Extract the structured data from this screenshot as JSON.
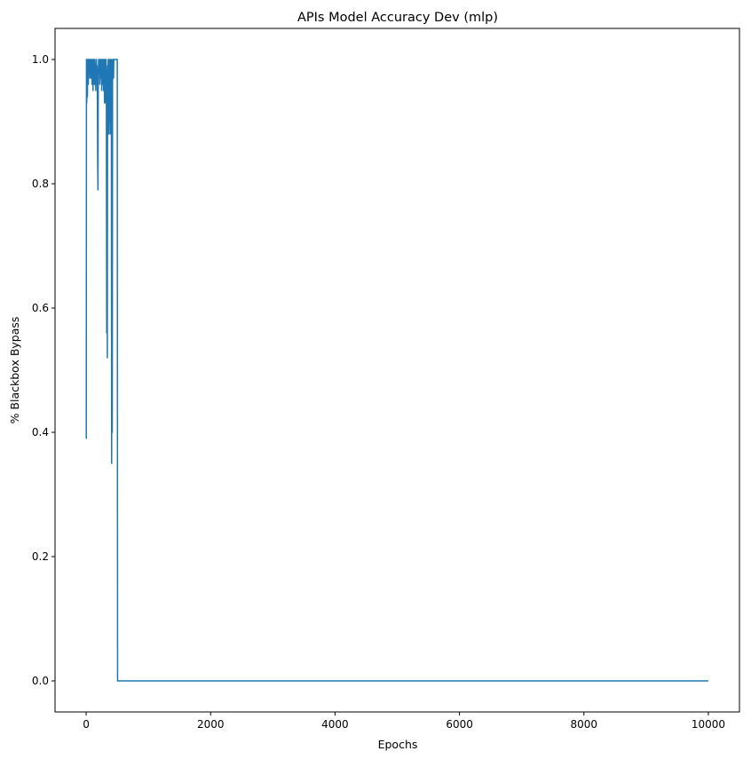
{
  "chart_data": {
    "type": "line",
    "title": "APIs Model Accuracy Dev (mlp)",
    "xlabel": "Epochs",
    "ylabel": "% Blackbox Bypass",
    "xlim": [
      -500,
      10500
    ],
    "ylim": [
      -0.05,
      1.05
    ],
    "xticks": [
      0,
      2000,
      4000,
      6000,
      8000,
      10000
    ],
    "xtick_labels": [
      "0",
      "2000",
      "4000",
      "6000",
      "8000",
      "10000"
    ],
    "yticks": [
      0.0,
      0.2,
      0.4,
      0.6,
      0.8,
      1.0
    ],
    "ytick_labels": [
      "0.0",
      "0.2",
      "0.4",
      "0.6",
      "0.8",
      "1.0"
    ],
    "grid": false,
    "color": "#1f77b4",
    "series": [
      {
        "x": [
          0,
          2,
          5,
          10,
          15,
          20,
          25,
          30,
          35,
          40,
          45,
          50,
          55,
          60,
          65,
          70,
          75,
          80,
          85,
          90,
          95,
          100,
          105,
          110,
          115,
          120,
          125,
          130,
          135,
          140,
          145,
          150,
          155,
          160,
          165,
          170,
          175,
          180,
          185,
          190,
          195,
          200,
          205,
          210,
          215,
          220,
          225,
          230,
          235,
          240,
          245,
          250,
          255,
          260,
          265,
          270,
          275,
          280,
          285,
          290,
          295,
          300,
          305,
          310,
          315,
          320,
          325,
          330,
          335,
          340,
          345,
          350,
          355,
          360,
          365,
          370,
          375,
          380,
          385,
          390,
          395,
          400,
          405,
          410,
          415,
          420,
          425,
          430,
          435,
          440,
          445,
          450,
          455,
          460,
          465,
          470,
          475,
          480,
          485,
          490,
          495,
          500,
          505,
          510,
          520,
          10000
        ],
        "y": [
          0.39,
          0.39,
          1.0,
          0.93,
          1.0,
          0.94,
          0.99,
          1.0,
          0.96,
          1.0,
          1.0,
          0.99,
          1.0,
          0.97,
          1.0,
          0.98,
          1.0,
          0.97,
          0.99,
          1.0,
          0.96,
          0.98,
          1.0,
          0.95,
          1.0,
          0.97,
          1.0,
          0.96,
          0.99,
          1.0,
          0.96,
          0.99,
          0.95,
          0.98,
          1.0,
          0.97,
          0.99,
          0.95,
          0.84,
          0.79,
          0.97,
          1.0,
          1.0,
          0.98,
          1.0,
          0.96,
          0.99,
          1.0,
          0.97,
          1.0,
          0.99,
          0.95,
          1.0,
          0.98,
          0.96,
          0.99,
          1.0,
          0.95,
          0.98,
          1.0,
          0.93,
          0.97,
          1.0,
          0.95,
          0.93,
          1.0,
          0.97,
          0.56,
          0.95,
          0.52,
          0.99,
          0.94,
          1.0,
          0.88,
          0.95,
          1.0,
          0.9,
          0.99,
          0.88,
          1.0,
          0.92,
          0.97,
          1.0,
          0.35,
          0.94,
          0.4,
          1.0,
          0.98,
          1.0,
          0.97,
          1.0,
          1.0,
          1.0,
          1.0,
          1.0,
          1.0,
          1.0,
          1.0,
          1.0,
          1.0,
          1.0,
          1.0,
          0.0,
          0.0,
          0.0,
          0.0
        ]
      }
    ]
  }
}
